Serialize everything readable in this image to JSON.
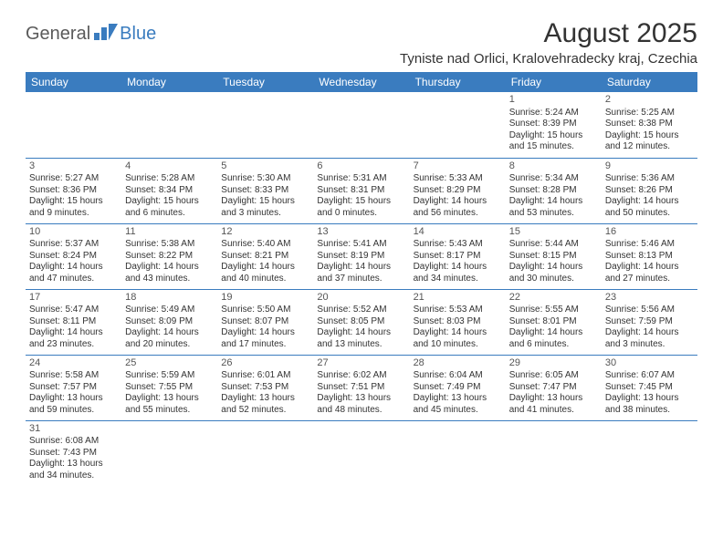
{
  "logo": {
    "part1": "General",
    "part2": "Blue"
  },
  "title": "August 2025",
  "subtitle": "Tyniste nad Orlici, Kralovehradecky kraj, Czechia",
  "colors": {
    "header_bg": "#3a7cbf",
    "header_text": "#ffffff",
    "body_text": "#333333",
    "logo_gray": "#5a5a5a",
    "logo_blue": "#3a7cbf",
    "rule": "#3a7cbf"
  },
  "weekdays": [
    "Sunday",
    "Monday",
    "Tuesday",
    "Wednesday",
    "Thursday",
    "Friday",
    "Saturday"
  ],
  "weeks": [
    [
      null,
      null,
      null,
      null,
      null,
      {
        "n": "1",
        "sr": "Sunrise: 5:24 AM",
        "ss": "Sunset: 8:39 PM",
        "d1": "Daylight: 15 hours",
        "d2": "and 15 minutes."
      },
      {
        "n": "2",
        "sr": "Sunrise: 5:25 AM",
        "ss": "Sunset: 8:38 PM",
        "d1": "Daylight: 15 hours",
        "d2": "and 12 minutes."
      }
    ],
    [
      {
        "n": "3",
        "sr": "Sunrise: 5:27 AM",
        "ss": "Sunset: 8:36 PM",
        "d1": "Daylight: 15 hours",
        "d2": "and 9 minutes."
      },
      {
        "n": "4",
        "sr": "Sunrise: 5:28 AM",
        "ss": "Sunset: 8:34 PM",
        "d1": "Daylight: 15 hours",
        "d2": "and 6 minutes."
      },
      {
        "n": "5",
        "sr": "Sunrise: 5:30 AM",
        "ss": "Sunset: 8:33 PM",
        "d1": "Daylight: 15 hours",
        "d2": "and 3 minutes."
      },
      {
        "n": "6",
        "sr": "Sunrise: 5:31 AM",
        "ss": "Sunset: 8:31 PM",
        "d1": "Daylight: 15 hours",
        "d2": "and 0 minutes."
      },
      {
        "n": "7",
        "sr": "Sunrise: 5:33 AM",
        "ss": "Sunset: 8:29 PM",
        "d1": "Daylight: 14 hours",
        "d2": "and 56 minutes."
      },
      {
        "n": "8",
        "sr": "Sunrise: 5:34 AM",
        "ss": "Sunset: 8:28 PM",
        "d1": "Daylight: 14 hours",
        "d2": "and 53 minutes."
      },
      {
        "n": "9",
        "sr": "Sunrise: 5:36 AM",
        "ss": "Sunset: 8:26 PM",
        "d1": "Daylight: 14 hours",
        "d2": "and 50 minutes."
      }
    ],
    [
      {
        "n": "10",
        "sr": "Sunrise: 5:37 AM",
        "ss": "Sunset: 8:24 PM",
        "d1": "Daylight: 14 hours",
        "d2": "and 47 minutes."
      },
      {
        "n": "11",
        "sr": "Sunrise: 5:38 AM",
        "ss": "Sunset: 8:22 PM",
        "d1": "Daylight: 14 hours",
        "d2": "and 43 minutes."
      },
      {
        "n": "12",
        "sr": "Sunrise: 5:40 AM",
        "ss": "Sunset: 8:21 PM",
        "d1": "Daylight: 14 hours",
        "d2": "and 40 minutes."
      },
      {
        "n": "13",
        "sr": "Sunrise: 5:41 AM",
        "ss": "Sunset: 8:19 PM",
        "d1": "Daylight: 14 hours",
        "d2": "and 37 minutes."
      },
      {
        "n": "14",
        "sr": "Sunrise: 5:43 AM",
        "ss": "Sunset: 8:17 PM",
        "d1": "Daylight: 14 hours",
        "d2": "and 34 minutes."
      },
      {
        "n": "15",
        "sr": "Sunrise: 5:44 AM",
        "ss": "Sunset: 8:15 PM",
        "d1": "Daylight: 14 hours",
        "d2": "and 30 minutes."
      },
      {
        "n": "16",
        "sr": "Sunrise: 5:46 AM",
        "ss": "Sunset: 8:13 PM",
        "d1": "Daylight: 14 hours",
        "d2": "and 27 minutes."
      }
    ],
    [
      {
        "n": "17",
        "sr": "Sunrise: 5:47 AM",
        "ss": "Sunset: 8:11 PM",
        "d1": "Daylight: 14 hours",
        "d2": "and 23 minutes."
      },
      {
        "n": "18",
        "sr": "Sunrise: 5:49 AM",
        "ss": "Sunset: 8:09 PM",
        "d1": "Daylight: 14 hours",
        "d2": "and 20 minutes."
      },
      {
        "n": "19",
        "sr": "Sunrise: 5:50 AM",
        "ss": "Sunset: 8:07 PM",
        "d1": "Daylight: 14 hours",
        "d2": "and 17 minutes."
      },
      {
        "n": "20",
        "sr": "Sunrise: 5:52 AM",
        "ss": "Sunset: 8:05 PM",
        "d1": "Daylight: 14 hours",
        "d2": "and 13 minutes."
      },
      {
        "n": "21",
        "sr": "Sunrise: 5:53 AM",
        "ss": "Sunset: 8:03 PM",
        "d1": "Daylight: 14 hours",
        "d2": "and 10 minutes."
      },
      {
        "n": "22",
        "sr": "Sunrise: 5:55 AM",
        "ss": "Sunset: 8:01 PM",
        "d1": "Daylight: 14 hours",
        "d2": "and 6 minutes."
      },
      {
        "n": "23",
        "sr": "Sunrise: 5:56 AM",
        "ss": "Sunset: 7:59 PM",
        "d1": "Daylight: 14 hours",
        "d2": "and 3 minutes."
      }
    ],
    [
      {
        "n": "24",
        "sr": "Sunrise: 5:58 AM",
        "ss": "Sunset: 7:57 PM",
        "d1": "Daylight: 13 hours",
        "d2": "and 59 minutes."
      },
      {
        "n": "25",
        "sr": "Sunrise: 5:59 AM",
        "ss": "Sunset: 7:55 PM",
        "d1": "Daylight: 13 hours",
        "d2": "and 55 minutes."
      },
      {
        "n": "26",
        "sr": "Sunrise: 6:01 AM",
        "ss": "Sunset: 7:53 PM",
        "d1": "Daylight: 13 hours",
        "d2": "and 52 minutes."
      },
      {
        "n": "27",
        "sr": "Sunrise: 6:02 AM",
        "ss": "Sunset: 7:51 PM",
        "d1": "Daylight: 13 hours",
        "d2": "and 48 minutes."
      },
      {
        "n": "28",
        "sr": "Sunrise: 6:04 AM",
        "ss": "Sunset: 7:49 PM",
        "d1": "Daylight: 13 hours",
        "d2": "and 45 minutes."
      },
      {
        "n": "29",
        "sr": "Sunrise: 6:05 AM",
        "ss": "Sunset: 7:47 PM",
        "d1": "Daylight: 13 hours",
        "d2": "and 41 minutes."
      },
      {
        "n": "30",
        "sr": "Sunrise: 6:07 AM",
        "ss": "Sunset: 7:45 PM",
        "d1": "Daylight: 13 hours",
        "d2": "and 38 minutes."
      }
    ],
    [
      {
        "n": "31",
        "sr": "Sunrise: 6:08 AM",
        "ss": "Sunset: 7:43 PM",
        "d1": "Daylight: 13 hours",
        "d2": "and 34 minutes."
      },
      null,
      null,
      null,
      null,
      null,
      null
    ]
  ]
}
